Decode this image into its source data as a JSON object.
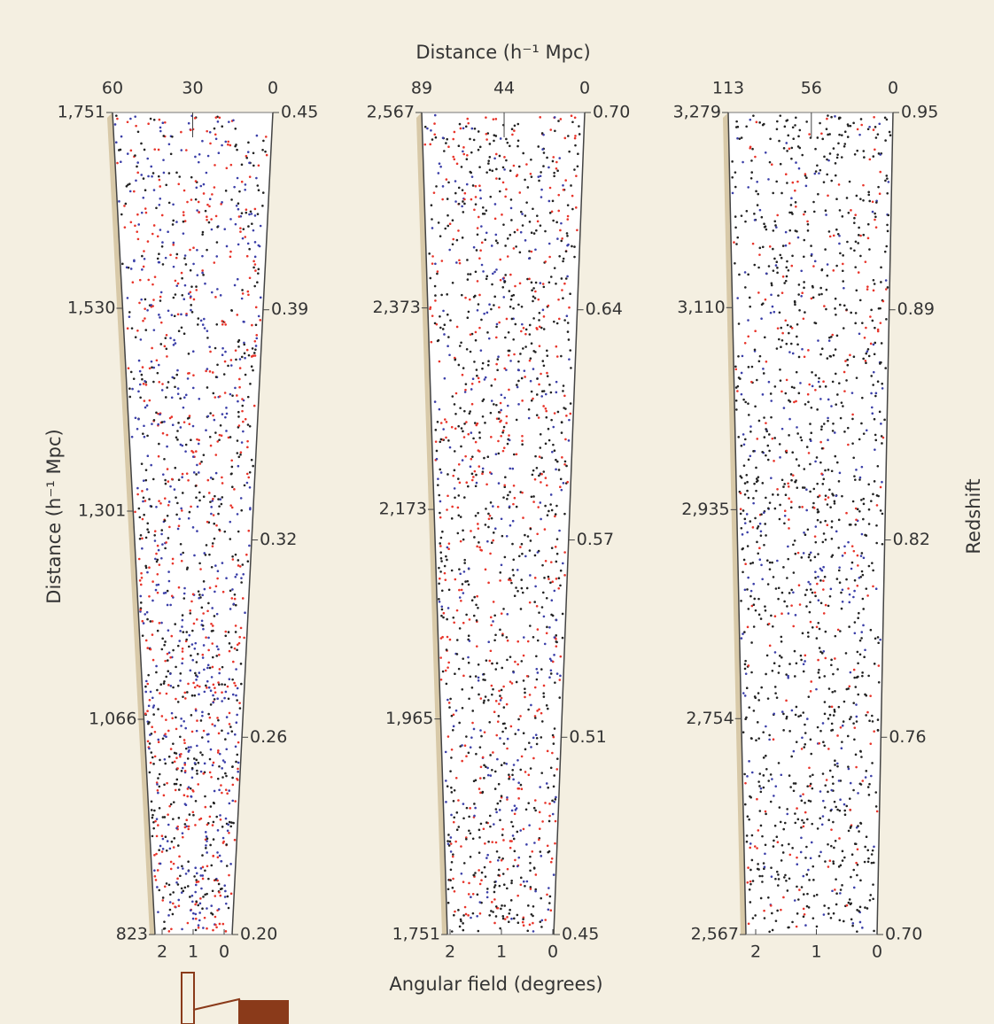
{
  "figure": {
    "top_axis_label": "Distance (h⁻¹ Mpc)",
    "left_axis_label": "Distance (h⁻¹ Mpc)",
    "right_axis_label": "Redshift",
    "bottom_axis_label": "Angular field (degrees)"
  },
  "chart_data": [
    {
      "type": "wedge",
      "ylim": [
        823,
        1751
      ],
      "yticks": [
        {
          "value": 1751,
          "label": "1,751"
        },
        {
          "value": 1530,
          "label": "1,530"
        },
        {
          "value": 1301,
          "label": "1,301"
        },
        {
          "value": 1066,
          "label": "1,066"
        },
        823
      ],
      "y2lim": [
        {
          "value": 0.2,
          "label": "0.20"
        },
        0.45
      ],
      "y2ticks": [
        0.45,
        0.39,
        0.32,
        0.26,
        {
          "value": 0.2,
          "label": "0.20"
        }
      ],
      "x2lim": [
        60,
        0
      ],
      "x2ticks": [
        60,
        30,
        0
      ],
      "xlim": [
        2,
        0
      ],
      "xticks": [
        2,
        1,
        0
      ],
      "point_colors": [
        "#222222",
        "#e8342a",
        "#3b3fa8",
        "#222222",
        "#e8342a",
        "#3b3fa8"
      ]
    },
    {
      "type": "wedge",
      "ylim": [
        {
          "value": 1751,
          "label": "1,751"
        },
        {
          "value": 2567,
          "label": "2,567"
        }
      ],
      "yticks": [
        {
          "value": 2567,
          "label": "2,567"
        },
        {
          "value": 2373,
          "label": "2,373"
        },
        {
          "value": 2173,
          "label": "2,173"
        },
        {
          "value": 1965,
          "label": "1,965"
        },
        {
          "value": 1751,
          "label": "1,751"
        }
      ],
      "y2lim": [
        0.45,
        {
          "value": 0.7,
          "label": "0.70"
        }
      ],
      "y2ticks": [
        {
          "value": 0.7,
          "label": "0.70"
        },
        0.64,
        0.57,
        0.51,
        0.45
      ],
      "x2lim": [
        89,
        0
      ],
      "x2ticks": [
        89,
        44,
        0
      ],
      "xlim": [
        2,
        0
      ],
      "xticks": [
        2,
        1,
        0
      ],
      "point_colors": [
        "#222222",
        "#222222",
        "#e8342a",
        "#e8342a",
        "#3b3fa8",
        "#222222"
      ]
    },
    {
      "type": "wedge",
      "ylim": [
        {
          "value": 2567,
          "label": "2,567"
        },
        {
          "value": 3279,
          "label": "3,279"
        }
      ],
      "yticks": [
        {
          "value": 3279,
          "label": "3,279"
        },
        {
          "value": 3110,
          "label": "3,110"
        },
        {
          "value": 2935,
          "label": "2,935"
        },
        {
          "value": 2754,
          "label": "2,754"
        },
        {
          "value": 2567,
          "label": "2,567"
        }
      ],
      "y2lim": [
        {
          "value": 0.7,
          "label": "0.70"
        },
        0.95
      ],
      "y2ticks": [
        0.95,
        0.89,
        0.82,
        0.76,
        {
          "value": 0.7,
          "label": "0.70"
        }
      ],
      "x2lim": [
        113,
        0
      ],
      "x2ticks": [
        113,
        56,
        0
      ],
      "xlim": [
        2,
        0
      ],
      "xticks": [
        2,
        1,
        0
      ],
      "point_colors": [
        "#222222",
        "#222222",
        "#222222",
        "#e8342a",
        "#222222",
        "#3b3fa8"
      ]
    }
  ]
}
